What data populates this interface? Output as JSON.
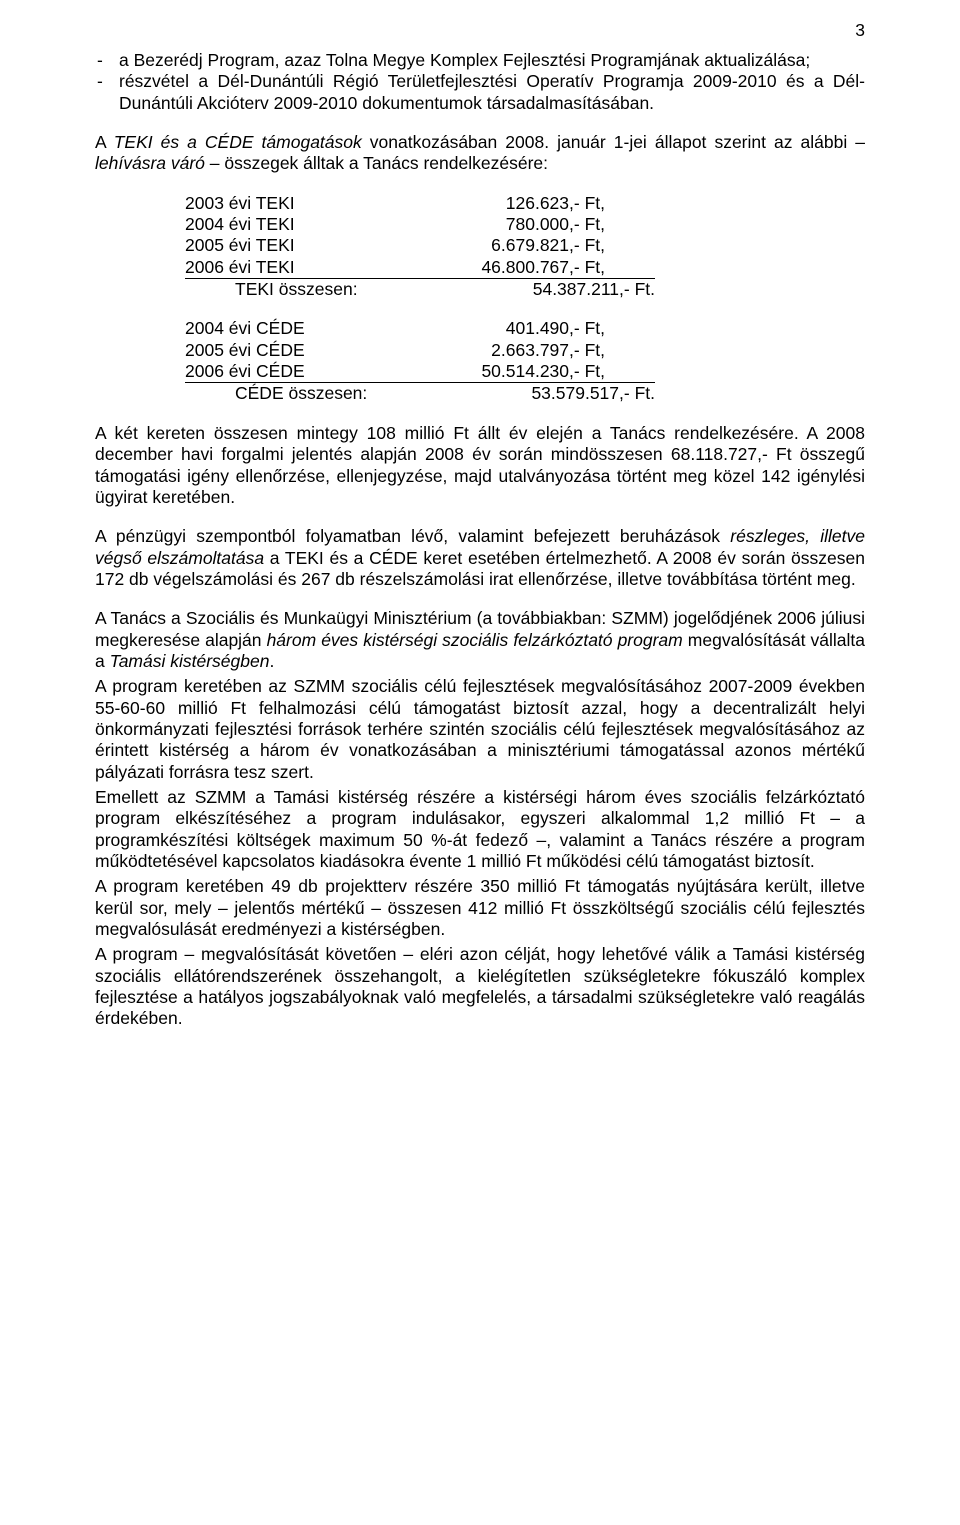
{
  "page_number": "3",
  "bullets": {
    "b1_prefix": "a Bezerédj Program, azaz Tolna Megye Komplex Fejlesztési Programjának aktualizálása;",
    "b2_prefix": "részvétel a Dél-Dunántúli Régió Területfejlesztési Operatív Programja 2009-2010 és a Dél-Dunántúli Akcióterv 2009-2010 dokumentumok társadalmasításában."
  },
  "intro2": {
    "part1": "A ",
    "it1": "TEKI és a CÉDE támogatások",
    "part2": " vonatkozásában 2008. január 1-jei állapot szerint az alábbi – ",
    "it2": "lehívásra váró",
    "part3": " – összegek álltak a Tanács rendelkezésére:"
  },
  "teki": {
    "r1_label": "2003 évi TEKI",
    "r1_val": "126.623,- Ft,",
    "r2_label": "2004 évi TEKI",
    "r2_val": "780.000,- Ft,",
    "r3_label": "2005 évi TEKI",
    "r3_val": "6.679.821,- Ft,",
    "r4_label": "2006 évi TEKI",
    "r4_val": "46.800.767,- Ft,",
    "sum_label": "TEKI összesen:",
    "sum_val": "54.387.211,- Ft."
  },
  "cede": {
    "r1_label": "2004 évi CÉDE",
    "r1_val": "401.490,- Ft,",
    "r2_label": "2005 évi CÉDE",
    "r2_val": "2.663.797,- Ft,",
    "r3_label": "2006 évi CÉDE",
    "r3_val": "50.514.230,- Ft,",
    "sum_label": "CÉDE összesen:",
    "sum_val": "53.579.517,- Ft."
  },
  "p_after_tables": "A két kereten összesen mintegy 108 millió Ft állt év elején a Tanács rendelkezésére. A 2008 december havi forgalmi jelentés alapján 2008 év során mindösszesen 68.118.727,- Ft összegű támogatási igény ellenőrzése, ellenjegyzése, majd utalványozása történt meg közel 142 igénylési ügyirat keretében.",
  "p_penzugyi": {
    "part1": "A pénzügyi szempontból folyamatban lévő, valamint befejezett beruházások ",
    "it1": "részleges, illetve végső elszámoltatása",
    "part2": " a TEKI és a CÉDE keret esetében értelmezhető. A 2008 év során összesen 172 db végelszámolási és 267 db részelszámolási irat ellenőrzése, illetve továbbítása történt meg."
  },
  "p_tanacs": {
    "part1": "A Tanács a Szociális és Munkaügyi Minisztérium (a továbbiakban: SZMM) jogelődjének 2006 júliusi megkeresése alapján ",
    "it1": "három éves kistérségi szociális felzárkóztató program",
    "part2": " megvalósítását vállalta a ",
    "it2": "Tamási kistérségben",
    "part3": "."
  },
  "p_program1": "A program keretében az SZMM szociális célú fejlesztések megvalósításához 2007-2009 években 55-60-60 millió Ft felhalmozási célú támogatást biztosít azzal, hogy a decentralizált helyi önkormányzati fejlesztési források terhére szintén szociális célú fejlesztések megvalósításához az érintett kistérség a három év vonatkozásában a minisztériumi támogatással azonos mértékű pályázati forrásra tesz szert.",
  "p_emellett": "Emellett az SZMM a Tamási kistérség részére a kistérségi három éves szociális felzárkóztató program elkészítéséhez a program indulásakor, egyszeri alkalommal 1,2 millió Ft – a programkészítési költségek maximum 50 %-át fedező –, valamint a Tanács részére a program működtetésével kapcsolatos kiadásokra évente 1 millió Ft működési célú támogatást biztosít.",
  "p_program2": "A program keretében 49 db projektterv részére 350 millió Ft támogatás nyújtására került, illetve kerül sor, mely – jelentős mértékű – összesen 412 millió Ft összköltségű szociális célú fejlesztés megvalósulását eredményezi a kistérségben.",
  "p_program3": "A program – megvalósítását követően – eléri azon célját, hogy lehetővé válik a Tamási kistérség szociális ellátórendszerének összehangolt, a kielégítetlen szükségletekre fókuszáló komplex fejlesztése a hatályos jogszabályoknak való megfelelés, a társadalmi szükségletekre való reagálás érdekében."
}
